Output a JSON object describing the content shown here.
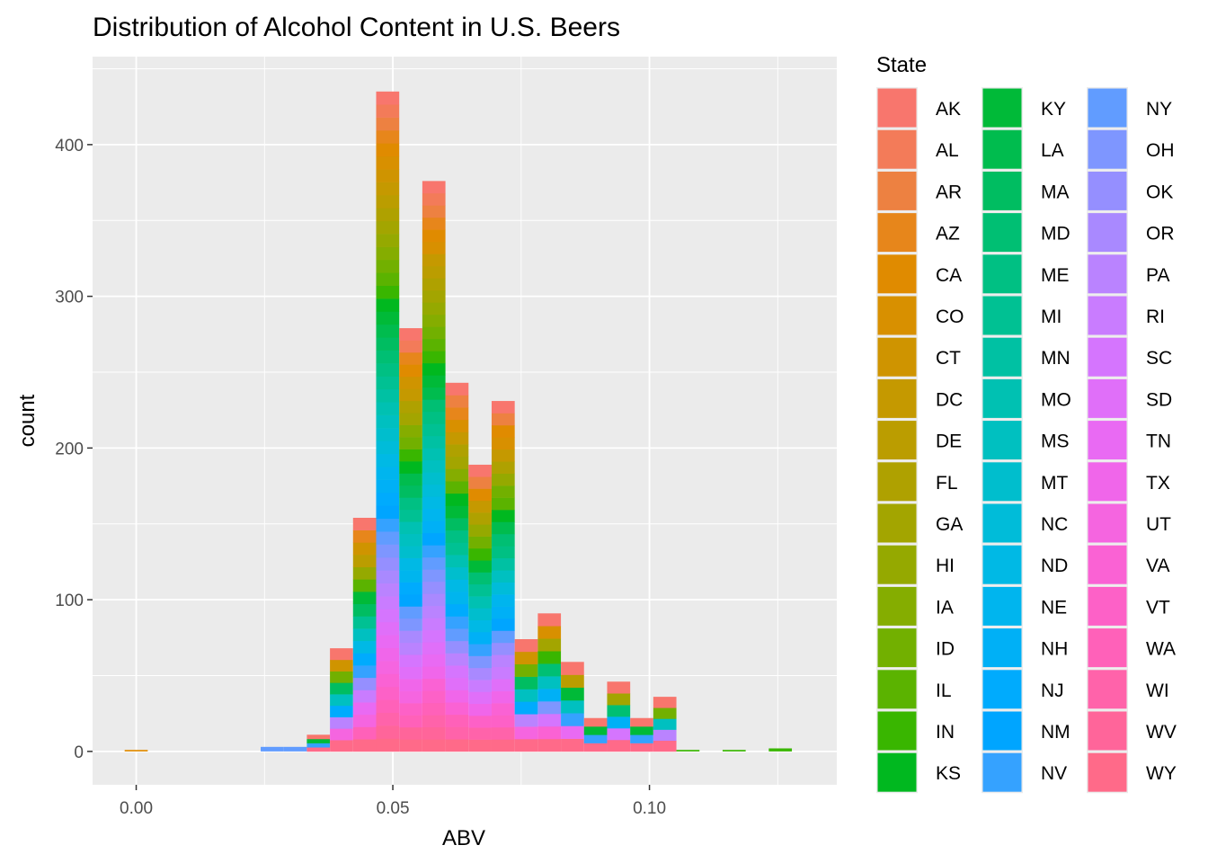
{
  "chart_data": {
    "type": "bar",
    "subtype": "stacked-histogram",
    "title": "Distribution of Alcohol Content in U.S. Beers",
    "xlabel": "ABV",
    "ylabel": "count",
    "xlim": [
      -0.0085,
      0.1365
    ],
    "ylim": [
      -22,
      458
    ],
    "x_ticks": [
      0.0,
      0.05,
      0.1
    ],
    "x_tick_labels": [
      "0.00",
      "0.05",
      "0.10"
    ],
    "y_ticks": [
      0,
      100,
      200,
      300,
      400
    ],
    "y_tick_labels": [
      "0",
      "100",
      "200",
      "300",
      "400"
    ],
    "grid": true,
    "background": "#ebebeb",
    "bin_width": 0.0045,
    "bins": [
      {
        "x": 0.0,
        "count": 1
      },
      {
        "x": 0.0265,
        "count": 3
      },
      {
        "x": 0.031,
        "count": 3
      },
      {
        "x": 0.0355,
        "count": 11
      },
      {
        "x": 0.04,
        "count": 68
      },
      {
        "x": 0.0445,
        "count": 154
      },
      {
        "x": 0.049,
        "count": 435
      },
      {
        "x": 0.0535,
        "count": 279
      },
      {
        "x": 0.058,
        "count": 376
      },
      {
        "x": 0.0625,
        "count": 243
      },
      {
        "x": 0.067,
        "count": 189
      },
      {
        "x": 0.0715,
        "count": 231
      },
      {
        "x": 0.076,
        "count": 74
      },
      {
        "x": 0.0805,
        "count": 91
      },
      {
        "x": 0.085,
        "count": 59
      },
      {
        "x": 0.0895,
        "count": 22
      },
      {
        "x": 0.094,
        "count": 46
      },
      {
        "x": 0.0985,
        "count": 22
      },
      {
        "x": 0.103,
        "count": 36
      },
      {
        "x": 0.1075,
        "count": 1
      },
      {
        "x": 0.1165,
        "count": 1
      },
      {
        "x": 0.1255,
        "count": 2
      }
    ],
    "legend": {
      "title": "State",
      "placement": "right",
      "columns": 3,
      "entries": [
        {
          "label": "AK",
          "color": "#F8766D"
        },
        {
          "label": "AL",
          "color": "#F37B59"
        },
        {
          "label": "AR",
          "color": "#ED8141"
        },
        {
          "label": "AZ",
          "color": "#E7861B"
        },
        {
          "label": "CA",
          "color": "#E08B00"
        },
        {
          "label": "CO",
          "color": "#D89000"
        },
        {
          "label": "CT",
          "color": "#CF9400"
        },
        {
          "label": "DC",
          "color": "#C59900"
        },
        {
          "label": "DE",
          "color": "#BB9D00"
        },
        {
          "label": "FL",
          "color": "#AFA100"
        },
        {
          "label": "GA",
          "color": "#A3A500"
        },
        {
          "label": "HI",
          "color": "#95A900"
        },
        {
          "label": "IA",
          "color": "#85AD00"
        },
        {
          "label": "ID",
          "color": "#72B000"
        },
        {
          "label": "IL",
          "color": "#5BB300"
        },
        {
          "label": "IN",
          "color": "#39B600"
        },
        {
          "label": "KS",
          "color": "#00B81F"
        },
        {
          "label": "KY",
          "color": "#00BA38"
        },
        {
          "label": "LA",
          "color": "#00BC4E"
        },
        {
          "label": "MA",
          "color": "#00BD61"
        },
        {
          "label": "MD",
          "color": "#00BF73"
        },
        {
          "label": "ME",
          "color": "#00C083"
        },
        {
          "label": "MI",
          "color": "#00C193"
        },
        {
          "label": "MN",
          "color": "#00C1A3"
        },
        {
          "label": "MO",
          "color": "#00C1B2"
        },
        {
          "label": "MS",
          "color": "#00C0C0"
        },
        {
          "label": "MT",
          "color": "#00BECD"
        },
        {
          "label": "NC",
          "color": "#00BCD9"
        },
        {
          "label": "ND",
          "color": "#00B9E5"
        },
        {
          "label": "NE",
          "color": "#00B5EE"
        },
        {
          "label": "NH",
          "color": "#00B0F6"
        },
        {
          "label": "NJ",
          "color": "#00ABFD"
        },
        {
          "label": "NM",
          "color": "#00A5FF"
        },
        {
          "label": "NV",
          "color": "#35A2FF"
        },
        {
          "label": "NY",
          "color": "#619CFF"
        },
        {
          "label": "OH",
          "color": "#7E96FF"
        },
        {
          "label": "OK",
          "color": "#958FFF"
        },
        {
          "label": "OR",
          "color": "#A989FF"
        },
        {
          "label": "PA",
          "color": "#BA83FF"
        },
        {
          "label": "RI",
          "color": "#C97CFF"
        },
        {
          "label": "SC",
          "color": "#D575FE"
        },
        {
          "label": "SD",
          "color": "#E06FF9"
        },
        {
          "label": "TN",
          "color": "#E96AF3"
        },
        {
          "label": "TX",
          "color": "#F066EA"
        },
        {
          "label": "UT",
          "color": "#F565E0"
        },
        {
          "label": "VA",
          "color": "#FA62D4"
        },
        {
          "label": "VT",
          "color": "#FD61C7"
        },
        {
          "label": "WA",
          "color": "#FF61B9"
        },
        {
          "label": "WI",
          "color": "#FF63AA"
        },
        {
          "label": "WV",
          "color": "#FF659A"
        },
        {
          "label": "WY",
          "color": "#FF6A89"
        }
      ]
    }
  }
}
